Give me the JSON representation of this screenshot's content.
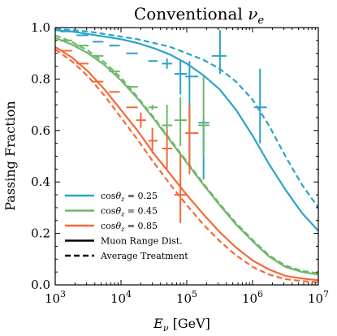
{
  "chart_data": {
    "type": "line",
    "title": "Conventional νe",
    "title_main": "Conventional ",
    "title_sym": "ν",
    "title_sub": "e",
    "xlabel": "Eν [GeV]",
    "xlabel_sym": "E",
    "xlabel_sub": "ν",
    "xlabel_unit": " [GeV]",
    "ylabel": "Passing Fraction",
    "xscale": "log",
    "xlim": [
      1000,
      10000000
    ],
    "ylim": [
      0.0,
      1.0
    ],
    "x_ticks": [
      {
        "value": 1000,
        "base": "10",
        "exp": "3"
      },
      {
        "value": 10000,
        "base": "10",
        "exp": "4"
      },
      {
        "value": 100000,
        "base": "10",
        "exp": "5"
      },
      {
        "value": 1000000,
        "base": "10",
        "exp": "6"
      },
      {
        "value": 10000000,
        "base": "10",
        "exp": "7"
      }
    ],
    "y_ticks": [
      {
        "value": 0.0,
        "label": "0.0"
      },
      {
        "value": 0.2,
        "label": "0.2"
      },
      {
        "value": 0.4,
        "label": "0.4"
      },
      {
        "value": 0.6,
        "label": "0.6"
      },
      {
        "value": 0.8,
        "label": "0.8"
      },
      {
        "value": 1.0,
        "label": "1.0"
      }
    ],
    "x": [
      1000,
      1778,
      3162,
      5623,
      10000,
      17783,
      31623,
      56234,
      100000,
      177828,
      316228,
      562341,
      1000000,
      1778279,
      3162278,
      5623413,
      10000000
    ],
    "series": [
      {
        "name": "cosθz = 0.25",
        "color": "#2ba3c9",
        "style": "solid",
        "values": [
          0.99,
          0.985,
          0.975,
          0.965,
          0.955,
          0.94,
          0.92,
          0.895,
          0.86,
          0.815,
          0.76,
          0.68,
          0.58,
          0.47,
          0.37,
          0.28,
          0.21
        ]
      },
      {
        "name": "cosθz = 0.25",
        "color": "#2ba3c9",
        "style": "dashed",
        "values": [
          0.995,
          0.99,
          0.985,
          0.975,
          0.965,
          0.955,
          0.94,
          0.925,
          0.9,
          0.875,
          0.84,
          0.79,
          0.72,
          0.62,
          0.5,
          0.39,
          0.3
        ]
      },
      {
        "name": "cosθz = 0.45",
        "color": "#6db86a",
        "style": "solid",
        "values": [
          0.96,
          0.935,
          0.9,
          0.855,
          0.795,
          0.725,
          0.645,
          0.56,
          0.475,
          0.39,
          0.31,
          0.235,
          0.17,
          0.11,
          0.07,
          0.05,
          0.04
        ]
      },
      {
        "name": "cosθz = 0.45",
        "color": "#6db86a",
        "style": "dashed",
        "values": [
          0.97,
          0.945,
          0.91,
          0.865,
          0.805,
          0.73,
          0.65,
          0.565,
          0.48,
          0.395,
          0.315,
          0.24,
          0.175,
          0.115,
          0.075,
          0.055,
          0.045
        ]
      },
      {
        "name": "cosθz = 0.85",
        "color": "#f4693a",
        "style": "solid",
        "values": [
          0.925,
          0.885,
          0.83,
          0.76,
          0.68,
          0.6,
          0.51,
          0.43,
          0.35,
          0.275,
          0.205,
          0.145,
          0.095,
          0.06,
          0.035,
          0.025,
          0.018
        ]
      },
      {
        "name": "cosθz = 0.85",
        "color": "#f4693a",
        "style": "dashed",
        "values": [
          0.915,
          0.87,
          0.81,
          0.735,
          0.65,
          0.565,
          0.475,
          0.39,
          0.31,
          0.235,
          0.17,
          0.115,
          0.07,
          0.04,
          0.022,
          0.015,
          0.01
        ]
      }
    ],
    "error_points": [
      {
        "color": "#2ba3c9",
        "points": [
          {
            "x": 1500,
            "y": 0.985,
            "xerr": [
              1200,
              1800
            ],
            "yerr": [
              0.0,
              0.0
            ]
          },
          {
            "x": 2600,
            "y": 0.97,
            "xerr": [
              2100,
              3200
            ],
            "yerr": [
              0.0,
              0.0
            ]
          },
          {
            "x": 4500,
            "y": 0.945,
            "xerr": [
              3700,
              5400
            ],
            "yerr": [
              0.0,
              0.0
            ]
          },
          {
            "x": 8000,
            "y": 0.93,
            "xerr": [
              6600,
              9600
            ],
            "yerr": [
              0.0,
              0.0
            ]
          },
          {
            "x": 15000,
            "y": 0.9,
            "xerr": [
              12000,
              18000
            ],
            "yerr": [
              0.0,
              0.0
            ]
          },
          {
            "x": 30000,
            "y": 0.87,
            "xerr": [
              26000,
              36000
            ],
            "yerr": [
              0.0,
              0.0
            ]
          },
          {
            "x": 50000,
            "y": 0.86,
            "xerr": [
              42000,
              60000
            ],
            "yerr": [
              0.84,
              0.88
            ]
          },
          {
            "x": 80000,
            "y": 0.82,
            "xerr": [
              65000,
              100000
            ],
            "yerr": [
              0.74,
              0.87
            ]
          },
          {
            "x": 110000,
            "y": 0.81,
            "xerr": [
              95000,
              150000
            ],
            "yerr": [
              0.65,
              0.87
            ]
          },
          {
            "x": 180000,
            "y": 0.63,
            "xerr": [
              150000,
              220000
            ],
            "yerr": [
              0.41,
              0.65
            ]
          },
          {
            "x": 320000,
            "y": 0.89,
            "xerr": [
              240000,
              400000
            ],
            "yerr": [
              0.82,
              0.99
            ]
          },
          {
            "x": 800000,
            "y": 1.0,
            "xerr": [
              660000,
              950000
            ],
            "yerr": [
              1.0,
              1.0
            ]
          },
          {
            "x": 1300000,
            "y": 0.69,
            "xerr": [
              1050000,
              1650000
            ],
            "yerr": [
              0.55,
              0.84
            ]
          }
        ]
      },
      {
        "color": "#6db86a",
        "points": [
          {
            "x": 1500,
            "y": 0.95,
            "xerr": [
              1200,
              1800
            ],
            "yerr": [
              0.0,
              0.0
            ]
          },
          {
            "x": 2600,
            "y": 0.93,
            "xerr": [
              2100,
              3200
            ],
            "yerr": [
              0.0,
              0.0
            ]
          },
          {
            "x": 4500,
            "y": 0.89,
            "xerr": [
              3700,
              5400
            ],
            "yerr": [
              0.0,
              0.0
            ]
          },
          {
            "x": 8000,
            "y": 0.83,
            "xerr": [
              6600,
              9600
            ],
            "yerr": [
              0.0,
              0.0
            ]
          },
          {
            "x": 15000,
            "y": 0.77,
            "xerr": [
              12000,
              18000
            ],
            "yerr": [
              0.0,
              0.0
            ]
          },
          {
            "x": 30000,
            "y": 0.69,
            "xerr": [
              26000,
              36000
            ],
            "yerr": [
              0.68,
              0.7
            ]
          },
          {
            "x": 50000,
            "y": 0.62,
            "xerr": [
              42000,
              60000
            ],
            "yerr": [
              0.58,
              0.7
            ]
          },
          {
            "x": 80000,
            "y": 0.64,
            "xerr": [
              65000,
              100000
            ],
            "yerr": [
              0.54,
              0.73
            ]
          },
          {
            "x": 110000,
            "y": 0.59,
            "xerr": [
              95000,
              150000
            ],
            "yerr": [
              0.46,
              0.7
            ]
          },
          {
            "x": 180000,
            "y": 0.62,
            "xerr": [
              150000,
              220000
            ],
            "yerr": [
              0.5,
              0.81
            ]
          }
        ]
      },
      {
        "color": "#f4693a",
        "points": [
          {
            "x": 1500,
            "y": 0.91,
            "xerr": [
              1200,
              1800
            ],
            "yerr": [
              0.0,
              0.0
            ]
          },
          {
            "x": 2600,
            "y": 0.86,
            "xerr": [
              2100,
              3200
            ],
            "yerr": [
              0.0,
              0.0
            ]
          },
          {
            "x": 4500,
            "y": 0.79,
            "xerr": [
              3700,
              5400
            ],
            "yerr": [
              0.0,
              0.0
            ]
          },
          {
            "x": 8000,
            "y": 0.75,
            "xerr": [
              6600,
              9600
            ],
            "yerr": [
              0.0,
              0.0
            ]
          },
          {
            "x": 15000,
            "y": 0.69,
            "xerr": [
              12000,
              18000
            ],
            "yerr": [
              0.0,
              0.0
            ]
          },
          {
            "x": 20000,
            "y": 0.64,
            "xerr": [
              17000,
              24000
            ],
            "yerr": [
              0.61,
              0.67
            ]
          },
          {
            "x": 30000,
            "y": 0.56,
            "xerr": [
              26000,
              36000
            ],
            "yerr": [
              0.51,
              0.61
            ]
          },
          {
            "x": 50000,
            "y": 0.53,
            "xerr": [
              42000,
              60000
            ],
            "yerr": [
              0.45,
              0.6
            ]
          },
          {
            "x": 80000,
            "y": 0.35,
            "xerr": [
              65000,
              100000
            ],
            "yerr": [
              0.24,
              0.51
            ]
          },
          {
            "x": 110000,
            "y": 0.59,
            "xerr": [
              95000,
              150000
            ],
            "yerr": [
              0.43,
              0.7
            ]
          }
        ]
      }
    ],
    "legend": {
      "placement": "lower-left",
      "entries": [
        {
          "type": "color",
          "color": "#2ba3c9",
          "label": "cosθz = 0.25",
          "pre": "cos",
          "sym": "θ",
          "sub": "z",
          "post": " = 0.25"
        },
        {
          "type": "color",
          "color": "#6db86a",
          "label": "cosθz = 0.45",
          "pre": "cos",
          "sym": "θ",
          "sub": "z",
          "post": " = 0.45"
        },
        {
          "type": "color",
          "color": "#f4693a",
          "label": "cosθz = 0.85",
          "pre": "cos",
          "sym": "θ",
          "sub": "z",
          "post": " = 0.85"
        },
        {
          "type": "style",
          "style": "solid",
          "label": "Muon Range Dist."
        },
        {
          "type": "style",
          "style": "dashed",
          "label": "Average Treatment"
        }
      ]
    },
    "grid": false
  }
}
